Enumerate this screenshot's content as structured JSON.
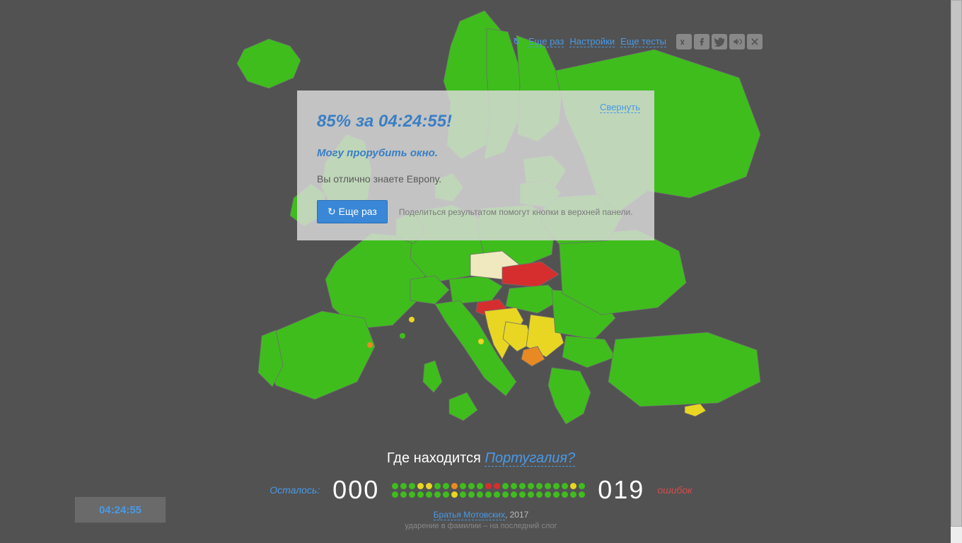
{
  "colors": {
    "background": "#525252",
    "green": "#3fbd1d",
    "yellow": "#e8d623",
    "orange": "#e88a23",
    "red": "#d62e2e",
    "link": "#4a99e6",
    "accent": "#3a87d8"
  },
  "top": {
    "retry": "Еще раз",
    "settings": "Настройки",
    "more_tests": "Еще тесты",
    "icons": [
      "vk",
      "facebook",
      "twitter",
      "sound",
      "close"
    ]
  },
  "result": {
    "minimize": "Свернуть",
    "title": "85% за 04:24:55!",
    "subtitle": "Могу прорубить окно.",
    "description": "Вы отлично знаете Европу.",
    "retry_button": "↻ Еще раз",
    "share_hint": "Поделиться результатом помогут кнопки в верхней панели."
  },
  "question": {
    "prefix": "Где находится",
    "country": "Португалия?"
  },
  "score": {
    "remaining_label": "Осталось:",
    "remaining": "000",
    "errors": "019",
    "errors_label": "ошибок",
    "dots_row1": [
      "green",
      "green",
      "green",
      "yellow",
      "yellow",
      "green",
      "green",
      "orange",
      "green",
      "green",
      "green",
      "red",
      "red",
      "green",
      "green",
      "green",
      "green",
      "green",
      "green",
      "green",
      "green",
      "yellow",
      "green"
    ],
    "dots_row2": [
      "green",
      "green",
      "green",
      "green",
      "green",
      "green",
      "green",
      "yellow",
      "green",
      "green",
      "green",
      "green",
      "green",
      "green",
      "green",
      "green",
      "green",
      "green",
      "green",
      "green",
      "green",
      "green",
      "green"
    ]
  },
  "footer": {
    "brand": "Братья Мотовских",
    "year": ", 2017",
    "stress": "ударение в фамилии – на последний слог"
  },
  "timer": "04:24:55"
}
